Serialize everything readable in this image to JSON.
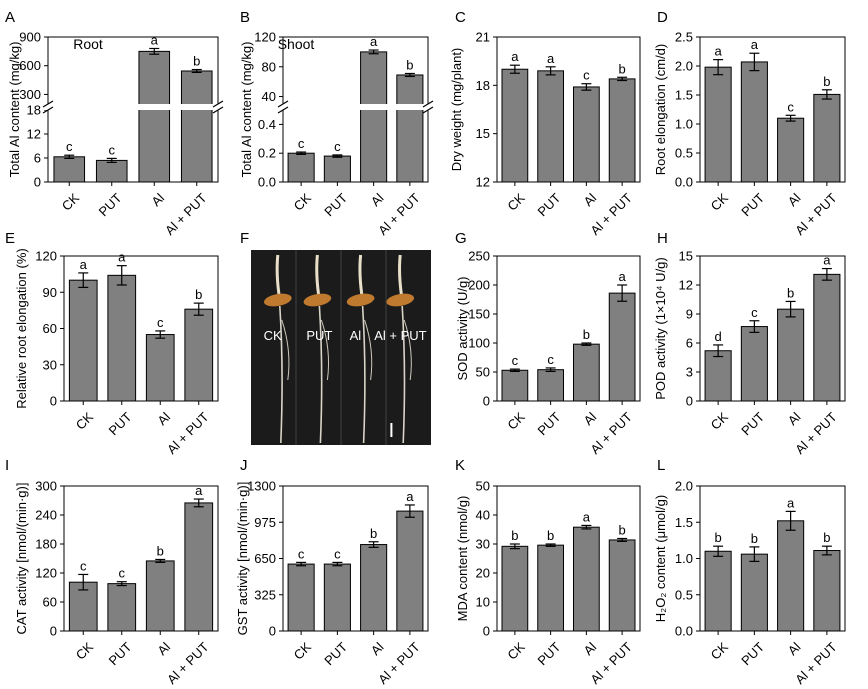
{
  "chart_data": [
    {
      "panel": "A",
      "type": "bar",
      "categories": [
        "CK",
        "PUT",
        "Al",
        "Al + PUT"
      ],
      "values": [
        6.3,
        5.4,
        750,
        545
      ],
      "errors": [
        0.4,
        0.5,
        30,
        15
      ],
      "letters": [
        "c",
        "c",
        "a",
        "b"
      ],
      "ylabel": "Total Al content (mg/kg)",
      "annotation": "Root",
      "axis_break": true,
      "lower_range": [
        0,
        18
      ],
      "lower_ticks": [
        "0",
        "6",
        "12",
        "18"
      ],
      "upper_range": [
        200,
        900
      ],
      "upper_ticks": [
        "300",
        "600",
        "900"
      ],
      "bar_color": "#808080"
    },
    {
      "panel": "B",
      "type": "bar",
      "categories": [
        "CK",
        "PUT",
        "Al",
        "Al + PUT"
      ],
      "values": [
        0.2,
        0.18,
        100,
        69
      ],
      "errors": [
        0.008,
        0.008,
        2.5,
        2
      ],
      "letters": [
        "c",
        "c",
        "a",
        "b"
      ],
      "ylabel": "Total Al content (mg/kg)",
      "annotation": "Shoot",
      "axis_break": true,
      "lower_range": [
        0,
        0.5
      ],
      "lower_ticks": [
        "0.0",
        "0.2",
        "0.4"
      ],
      "upper_range": [
        30,
        120
      ],
      "upper_ticks": [
        "40",
        "80",
        "120"
      ],
      "bar_color": "#808080"
    },
    {
      "panel": "C",
      "type": "bar",
      "categories": [
        "CK",
        "PUT",
        "Al",
        "Al + PUT"
      ],
      "values": [
        19.0,
        18.9,
        17.9,
        18.4
      ],
      "errors": [
        0.25,
        0.25,
        0.2,
        0.1
      ],
      "letters": [
        "a",
        "a",
        "c",
        "b"
      ],
      "ylabel": "Dry weight (mg/plant)",
      "ylim": [
        12,
        21
      ],
      "yticks": [
        "12",
        "15",
        "18",
        "21"
      ],
      "bar_color": "#808080"
    },
    {
      "panel": "D",
      "type": "bar",
      "categories": [
        "CK",
        "PUT",
        "Al",
        "Al + PUT"
      ],
      "values": [
        1.98,
        2.07,
        1.1,
        1.51
      ],
      "errors": [
        0.13,
        0.15,
        0.05,
        0.08
      ],
      "letters": [
        "a",
        "a",
        "c",
        "b"
      ],
      "ylabel": "Root elongation (cm/d)",
      "ylim": [
        0,
        2.5
      ],
      "yticks": [
        "0.0",
        "0.5",
        "1.0",
        "1.5",
        "2.0",
        "2.5"
      ],
      "bar_color": "#808080"
    },
    {
      "panel": "E",
      "type": "bar",
      "categories": [
        "CK",
        "PUT",
        "Al",
        "Al + PUT"
      ],
      "values": [
        100,
        104,
        55,
        76
      ],
      "errors": [
        6,
        8,
        3,
        5
      ],
      "letters": [
        "a",
        "a",
        "c",
        "b"
      ],
      "ylabel": "Relative root elongation (%)",
      "ylim": [
        0,
        120
      ],
      "yticks": [
        "0",
        "30",
        "60",
        "90",
        "120"
      ],
      "bar_color": "#808080"
    },
    {
      "panel": "F",
      "type": "photo",
      "labels": [
        "CK",
        "PUT",
        "Al",
        "Al + PUT"
      ]
    },
    {
      "panel": "G",
      "type": "bar",
      "categories": [
        "CK",
        "PUT",
        "Al",
        "Al + PUT"
      ],
      "values": [
        53,
        54,
        98,
        186
      ],
      "errors": [
        2,
        3,
        2,
        14
      ],
      "letters": [
        "c",
        "c",
        "b",
        "a"
      ],
      "ylabel": "SOD activity (U/g)",
      "ylim": [
        0,
        250
      ],
      "yticks": [
        "0",
        "50",
        "100",
        "150",
        "200",
        "250"
      ],
      "bar_color": "#808080"
    },
    {
      "panel": "H",
      "type": "bar",
      "categories": [
        "CK",
        "PUT",
        "Al",
        "Al + PUT"
      ],
      "values": [
        5.2,
        7.7,
        9.5,
        13.1
      ],
      "errors": [
        0.6,
        0.6,
        0.8,
        0.6
      ],
      "letters": [
        "d",
        "c",
        "b",
        "a"
      ],
      "ylabel": "POD activity (1×10⁴ U/g)",
      "ylim": [
        0,
        15
      ],
      "yticks": [
        "0",
        "3",
        "6",
        "9",
        "12",
        "15"
      ],
      "bar_color": "#808080"
    },
    {
      "panel": "I",
      "type": "bar",
      "categories": [
        "CK",
        "PUT",
        "Al",
        "Al + PUT"
      ],
      "values": [
        101,
        98,
        145,
        265
      ],
      "errors": [
        16,
        4,
        3,
        8
      ],
      "letters": [
        "c",
        "c",
        "b",
        "a"
      ],
      "ylabel": "CAT activity [nmol/(min·g)]",
      "ylim": [
        0,
        300
      ],
      "yticks": [
        "0",
        "60",
        "120",
        "180",
        "240",
        "300"
      ],
      "bar_color": "#808080"
    },
    {
      "panel": "J",
      "type": "bar",
      "categories": [
        "CK",
        "PUT",
        "Al",
        "Al + PUT"
      ],
      "values": [
        600,
        600,
        775,
        1075
      ],
      "errors": [
        15,
        15,
        25,
        55
      ],
      "letters": [
        "c",
        "c",
        "b",
        "a"
      ],
      "ylabel": "GST activity [nmol/(min·g)]",
      "ylim": [
        0,
        1300
      ],
      "yticks": [
        "0",
        "325",
        "650",
        "975",
        "1300"
      ],
      "bar_color": "#808080"
    },
    {
      "panel": "K",
      "type": "bar",
      "categories": [
        "CK",
        "PUT",
        "Al",
        "Al + PUT"
      ],
      "values": [
        29.2,
        29.6,
        35.8,
        31.4
      ],
      "errors": [
        0.8,
        0.4,
        0.6,
        0.5
      ],
      "letters": [
        "b",
        "b",
        "a",
        "b"
      ],
      "ylabel": "MDA content (nmol/g)",
      "ylim": [
        0,
        50
      ],
      "yticks": [
        "0",
        "10",
        "20",
        "30",
        "40",
        "50"
      ],
      "bar_color": "#808080"
    },
    {
      "panel": "L",
      "type": "bar",
      "categories": [
        "CK",
        "PUT",
        "Al",
        "Al + PUT"
      ],
      "values": [
        1.1,
        1.06,
        1.52,
        1.11
      ],
      "errors": [
        0.07,
        0.1,
        0.13,
        0.06
      ],
      "letters": [
        "b",
        "b",
        "a",
        "b"
      ],
      "ylabel": "H₂O₂ content (μmol/g)",
      "ylim": [
        0,
        2.0
      ],
      "yticks": [
        "0.0",
        "0.5",
        "1.0",
        "1.5",
        "2.0"
      ],
      "bar_color": "#808080"
    }
  ]
}
